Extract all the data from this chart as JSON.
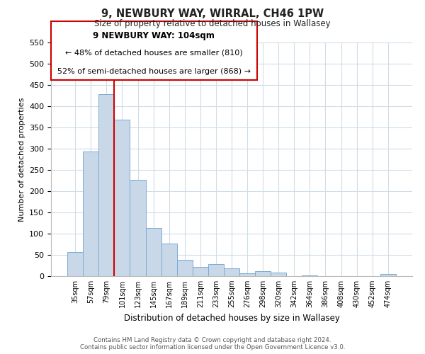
{
  "title": "9, NEWBURY WAY, WIRRAL, CH46 1PW",
  "subtitle": "Size of property relative to detached houses in Wallasey",
  "xlabel": "Distribution of detached houses by size in Wallasey",
  "ylabel": "Number of detached properties",
  "bar_labels": [
    "35sqm",
    "57sqm",
    "79sqm",
    "101sqm",
    "123sqm",
    "145sqm",
    "167sqm",
    "189sqm",
    "211sqm",
    "233sqm",
    "255sqm",
    "276sqm",
    "298sqm",
    "320sqm",
    "342sqm",
    "364sqm",
    "386sqm",
    "408sqm",
    "430sqm",
    "452sqm",
    "474sqm"
  ],
  "bar_values": [
    57,
    293,
    428,
    369,
    226,
    113,
    76,
    38,
    22,
    29,
    18,
    6,
    12,
    9,
    0,
    2,
    0,
    0,
    0,
    0,
    5
  ],
  "bar_color": "#c8d8e8",
  "bar_edge_color": "#7baad0",
  "vline_color": "#cc0000",
  "vline_pos": 2.5,
  "ylim": [
    0,
    550
  ],
  "yticks": [
    0,
    50,
    100,
    150,
    200,
    250,
    300,
    350,
    400,
    450,
    500,
    550
  ],
  "annotation_title": "9 NEWBURY WAY: 104sqm",
  "annotation_line1": "← 48% of detached houses are smaller (810)",
  "annotation_line2": "52% of semi-detached houses are larger (868) →",
  "annotation_box_color": "#ffffff",
  "annotation_box_edge": "#cc0000",
  "footer_line1": "Contains HM Land Registry data © Crown copyright and database right 2024.",
  "footer_line2": "Contains public sector information licensed under the Open Government Licence v3.0.",
  "bg_color": "#ffffff",
  "grid_color": "#d0dce8"
}
